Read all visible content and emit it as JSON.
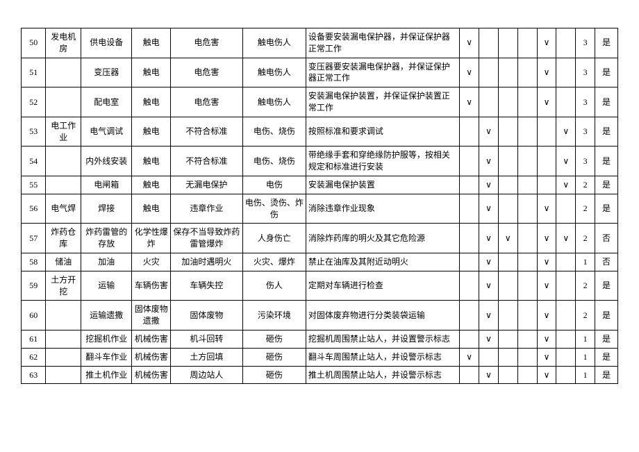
{
  "table": {
    "columns": [
      {
        "key": "idx",
        "class": "c-idx"
      },
      {
        "key": "loc",
        "class": "c-loc"
      },
      {
        "key": "item",
        "class": "c-item"
      },
      {
        "key": "type",
        "class": "c-type"
      },
      {
        "key": "cause",
        "class": "c-cause"
      },
      {
        "key": "harm",
        "class": "c-harm"
      },
      {
        "key": "measure",
        "class": "c-meas"
      },
      {
        "key": "chk1",
        "class": "c-chk"
      },
      {
        "key": "chk2",
        "class": "c-chk"
      },
      {
        "key": "chk3",
        "class": "c-chk"
      },
      {
        "key": "chk4",
        "class": "c-chk"
      },
      {
        "key": "chk5",
        "class": "c-chk"
      },
      {
        "key": "chk6",
        "class": "c-chk"
      },
      {
        "key": "lvl",
        "class": "c-lvl"
      },
      {
        "key": "ok",
        "class": "c-ok"
      }
    ],
    "check_mark": "∨",
    "rows": [
      {
        "idx": "50",
        "loc": "发电机房",
        "item": "供电设备",
        "type": "触电",
        "cause": "电危害",
        "harm": "触电伤人",
        "measure": "设备要安装漏电保护器，并保证保护器正常工作",
        "chk1": "∨",
        "chk2": "",
        "chk3": "",
        "chk4": "",
        "chk5": "∨",
        "chk6": "",
        "lvl": "3",
        "ok": "是"
      },
      {
        "idx": "51",
        "loc": "",
        "item": "变压器",
        "type": "触电",
        "cause": "电危害",
        "harm": "触电伤人",
        "measure": "变压器要安装漏电保护器，并保证保护器正常工作",
        "chk1": "∨",
        "chk2": "",
        "chk3": "",
        "chk4": "",
        "chk5": "∨",
        "chk6": "",
        "lvl": "3",
        "ok": "是"
      },
      {
        "idx": "52",
        "loc": "",
        "item": "配电室",
        "type": "触电",
        "cause": "电危害",
        "harm": "触电伤人",
        "measure": "安装漏电保护装置，并保证保护装置正常工作",
        "chk1": "∨",
        "chk2": "",
        "chk3": "",
        "chk4": "",
        "chk5": "∨",
        "chk6": "",
        "lvl": "3",
        "ok": "是"
      },
      {
        "idx": "53",
        "loc": "电工作业",
        "item": "电气调试",
        "type": "触电",
        "cause": "不符合标准",
        "harm": "电伤、烧伤",
        "measure": "按照标准和要求调试",
        "chk1": "",
        "chk2": "∨",
        "chk3": "",
        "chk4": "",
        "chk5": "",
        "chk6": "∨",
        "lvl": "3",
        "ok": "是"
      },
      {
        "idx": "54",
        "loc": "",
        "item": "内外线安装",
        "type": "触电",
        "cause": "不符合标准",
        "harm": "电伤、烧伤",
        "measure": "带绝缘手套和穿绝缘防护服等，按相关规定和标准进行安装",
        "chk1": "",
        "chk2": "∨",
        "chk3": "",
        "chk4": "",
        "chk5": "",
        "chk6": "∨",
        "lvl": "3",
        "ok": "是"
      },
      {
        "idx": "55",
        "loc": "",
        "item": "电闸箱",
        "type": "触电",
        "cause": "无漏电保护",
        "harm": "电伤",
        "measure": "安装漏电保护装置",
        "chk1": "",
        "chk2": "∨",
        "chk3": "",
        "chk4": "",
        "chk5": "",
        "chk6": "∨",
        "lvl": "2",
        "ok": "是"
      },
      {
        "idx": "56",
        "loc": "电气焊",
        "item": "焊接",
        "type": "触电",
        "cause": "违章作业",
        "harm": "电伤、烫伤、炸伤",
        "measure": "消除违章作业现象",
        "chk1": "",
        "chk2": "∨",
        "chk3": "",
        "chk4": "",
        "chk5": "∨",
        "chk6": "",
        "lvl": "2",
        "ok": "是"
      },
      {
        "idx": "57",
        "loc": "炸药仓库",
        "item": "炸药雷管的存放",
        "type": "化学性爆炸",
        "cause": "保存不当导致炸药雷管爆炸",
        "harm": "人身伤亡",
        "measure": "消除炸药库的明火及其它危险源",
        "chk1": "",
        "chk2": "∨",
        "chk3": "∨",
        "chk4": "",
        "chk5": "∨",
        "chk6": "∨",
        "lvl": "2",
        "ok": "否"
      },
      {
        "idx": "58",
        "loc": "储油",
        "item": "加油",
        "type": "火灾",
        "cause": "加油时遇明火",
        "harm": "火灾、爆炸",
        "measure": "禁止在油库及其附近动明火",
        "chk1": "",
        "chk2": "∨",
        "chk3": "",
        "chk4": "",
        "chk5": "∨",
        "chk6": "",
        "lvl": "1",
        "ok": "否"
      },
      {
        "idx": "59",
        "loc": "土方开挖",
        "item": "运输",
        "type": "车辆伤害",
        "cause": "车辆失控",
        "harm": "伤人",
        "measure": "定期对车辆进行检查",
        "chk1": "",
        "chk2": "∨",
        "chk3": "",
        "chk4": "",
        "chk5": "∨",
        "chk6": "",
        "lvl": "2",
        "ok": "是"
      },
      {
        "idx": "60",
        "loc": "",
        "item": "运输遗撒",
        "type": "固体废物遗撒",
        "cause": "固体废物",
        "harm": "污染环境",
        "measure": "对固体废弃物进行分类装袋运输",
        "chk1": "",
        "chk2": "∨",
        "chk3": "",
        "chk4": "",
        "chk5": "∨",
        "chk6": "",
        "lvl": "2",
        "ok": "是"
      },
      {
        "idx": "61",
        "loc": "",
        "item": "挖掘机作业",
        "type": "机械伤害",
        "cause": "机斗回转",
        "harm": "砸伤",
        "measure": "挖掘机周围禁止站人，并设置警示标志",
        "chk1": "",
        "chk2": "∨",
        "chk3": "",
        "chk4": "",
        "chk5": "∨",
        "chk6": "",
        "lvl": "1",
        "ok": "是"
      },
      {
        "idx": "62",
        "loc": "",
        "item": "翻斗车作业",
        "type": "机械伤害",
        "cause": "土方回填",
        "harm": "砸伤",
        "measure": "翻斗车周围禁止站人，并设警示标志",
        "chk1": "∨",
        "chk2": "",
        "chk3": "",
        "chk4": "",
        "chk5": "∨",
        "chk6": "",
        "lvl": "1",
        "ok": "是"
      },
      {
        "idx": "63",
        "loc": "",
        "item": "推土机作业",
        "type": "机械伤害",
        "cause": "周边站人",
        "harm": "砸伤",
        "measure": "推土机周围禁止站人，并设警示标志",
        "chk1": "",
        "chk2": "∨",
        "chk3": "",
        "chk4": "",
        "chk5": "∨",
        "chk6": "",
        "lvl": "1",
        "ok": "是"
      }
    ]
  }
}
